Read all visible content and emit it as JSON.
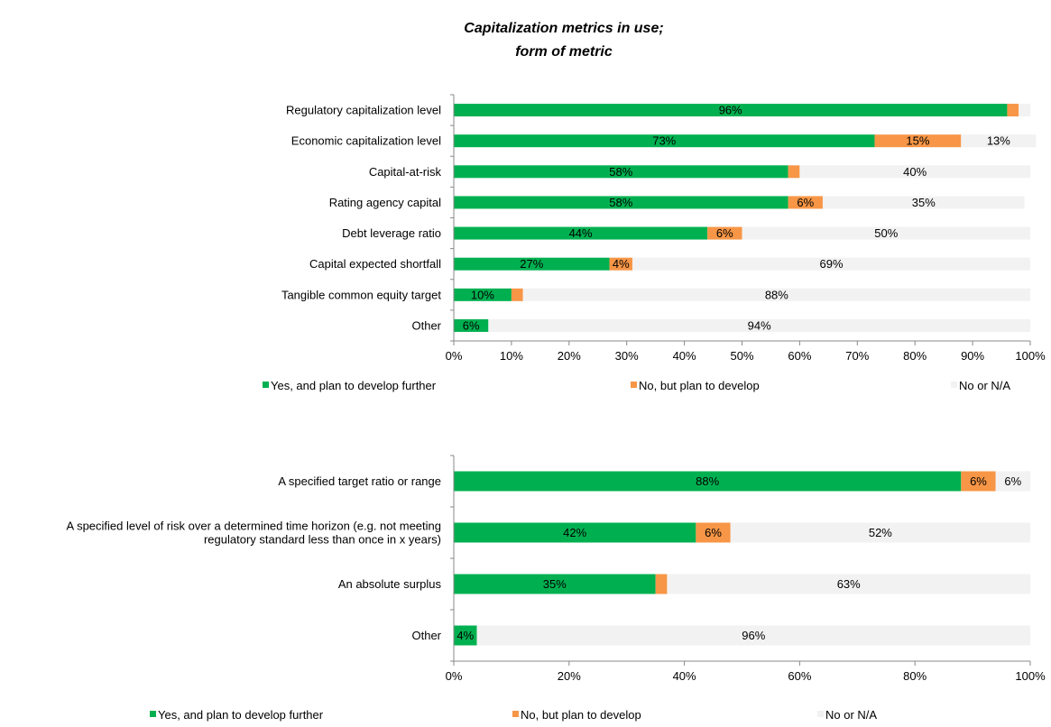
{
  "title_line1": "Capitalization metrics in use;",
  "title_line2": "form of metric",
  "colors": {
    "yes": "#00B050",
    "no_plan": "#F79646",
    "na": "#F2F2F2"
  },
  "chart_data": [
    {
      "type": "bar",
      "orientation": "horizontal",
      "stacked": true,
      "categories": [
        "Regulatory capitalization level",
        "Economic capitalization level",
        "Capital-at-risk",
        "Rating agency capital",
        "Debt leverage ratio",
        "Capital expected shortfall",
        "Tangible common equity target",
        "Other"
      ],
      "series": [
        {
          "name": "Yes, and plan to develop further",
          "values": [
            96,
            73,
            58,
            58,
            44,
            27,
            10,
            6
          ],
          "labels": [
            "96%",
            "73%",
            "58%",
            "58%",
            "44%",
            "27%",
            "10%",
            "6%"
          ]
        },
        {
          "name": "No, but plan to develop",
          "values": [
            2,
            15,
            2,
            6,
            6,
            4,
            2,
            0
          ],
          "labels": [
            "",
            "15%",
            "",
            "6%",
            "6%",
            "4%",
            "",
            ""
          ]
        },
        {
          "name": "No or N/A",
          "values": [
            2,
            13,
            40,
            35,
            50,
            69,
            88,
            94
          ],
          "labels": [
            "",
            "13%",
            "40%",
            "35%",
            "50%",
            "69%",
            "88%",
            "94%"
          ]
        }
      ],
      "xlim": [
        0,
        100
      ],
      "xticks": [
        "0%",
        "10%",
        "20%",
        "30%",
        "40%",
        "50%",
        "60%",
        "70%",
        "80%",
        "90%",
        "100%"
      ],
      "legend_position": "bottom"
    },
    {
      "type": "bar",
      "orientation": "horizontal",
      "stacked": true,
      "categories": [
        "A specified target ratio or range",
        "A specified level of risk over a determined time horizon (e.g. not meeting|regulatory standard less than once in x years)",
        "An absolute surplus",
        "Other"
      ],
      "series": [
        {
          "name": "Yes, and plan to develop further",
          "values": [
            88,
            42,
            35,
            4
          ],
          "labels": [
            "88%",
            "42%",
            "35%",
            "4%"
          ]
        },
        {
          "name": "No, but plan to develop",
          "values": [
            6,
            6,
            2,
            0
          ],
          "labels": [
            "6%",
            "6%",
            "",
            ""
          ]
        },
        {
          "name": "No or N/A",
          "values": [
            6,
            52,
            63,
            96
          ],
          "labels": [
            "6%",
            "52%",
            "63%",
            "96%"
          ]
        }
      ],
      "xlim": [
        0,
        100
      ],
      "xticks": [
        "0%",
        "20%",
        "40%",
        "60%",
        "80%",
        "100%"
      ],
      "legend_position": "bottom"
    }
  ]
}
